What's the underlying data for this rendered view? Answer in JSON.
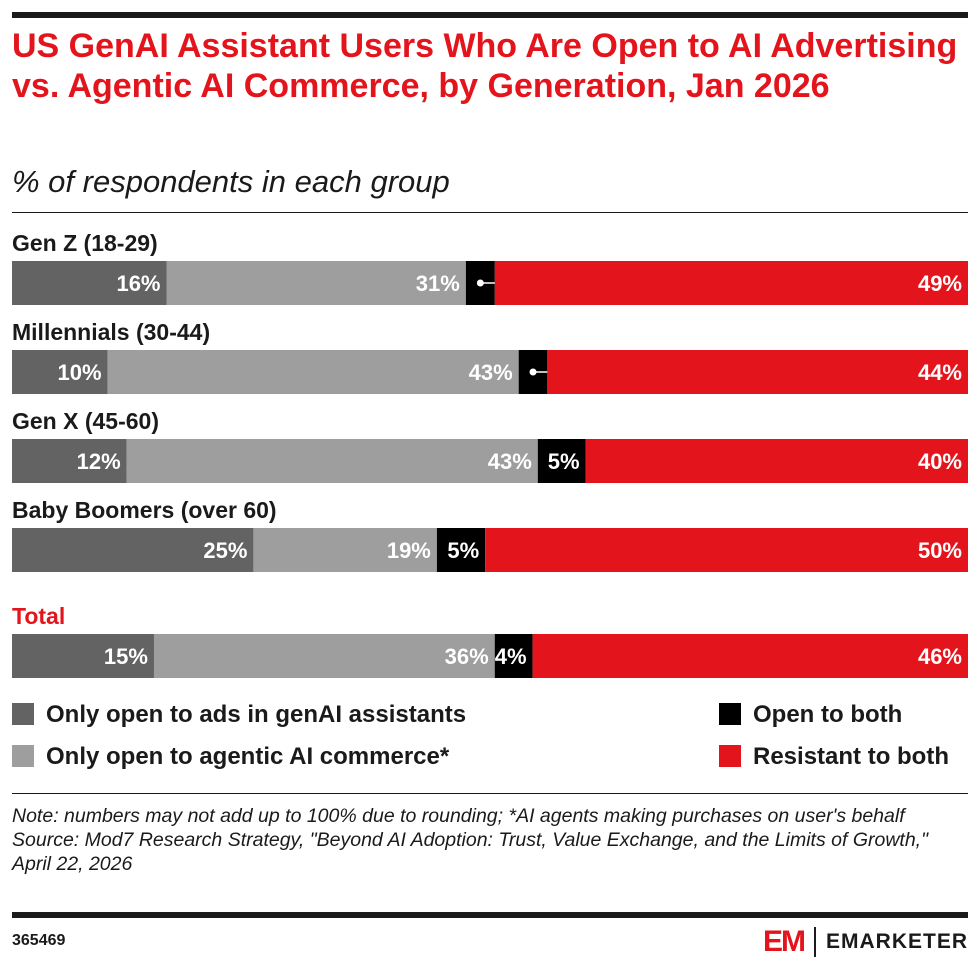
{
  "header": {
    "title": "US GenAI Assistant Users Who Are Open to AI Advertising vs. Agentic AI Commerce, by Generation, Jan 2026",
    "subtitle": "% of respondents in each group"
  },
  "colors": {
    "ads_only": "#636363",
    "commerce_only": "#9e9e9e",
    "both": "#000000",
    "resistant": "#e4141c",
    "total_label": "#e4141c"
  },
  "chart_data": {
    "type": "bar",
    "orientation": "horizontal",
    "stacked": true,
    "title": "US GenAI Assistant Users Who Are Open to AI Advertising vs. Agentic AI Commerce, by Generation, Jan 2026",
    "subtitle": "% of respondents in each group",
    "categories": [
      "Gen Z (18-29)",
      "Millennials (30-44)",
      "Gen X (45-60)",
      "Baby Boomers (over 60)",
      "Total"
    ],
    "series": [
      {
        "name": "Only open to ads in genAI assistants",
        "values": [
          16,
          10,
          12,
          25,
          15
        ]
      },
      {
        "name": "Only open to agentic AI commerce*",
        "values": [
          31,
          43,
          43,
          19,
          36
        ]
      },
      {
        "name": "Open to both",
        "values": [
          3,
          3,
          5,
          5,
          4
        ]
      },
      {
        "name": "Resistant to both",
        "values": [
          49,
          44,
          40,
          50,
          46
        ]
      }
    ],
    "value_suffix": "%",
    "legend_position": "bottom",
    "grid": false
  },
  "legend": {
    "ads_only": "Only open to ads in genAI assistants",
    "commerce_only": "Only open to agentic AI commerce*",
    "both": "Open to both",
    "resistant": "Resistant to both"
  },
  "footer": {
    "note": "Note: numbers may not add up to 100% due to rounding; *AI agents making purchases on user's behalf",
    "source": "Source: Mod7 Research Strategy, \"Beyond AI Adoption: Trust, Value Exchange, and the Limits of Growth,\" April 22, 2026",
    "chart_id": "365469",
    "brand_mark": "EM",
    "brand_name": "EMARKETER"
  }
}
